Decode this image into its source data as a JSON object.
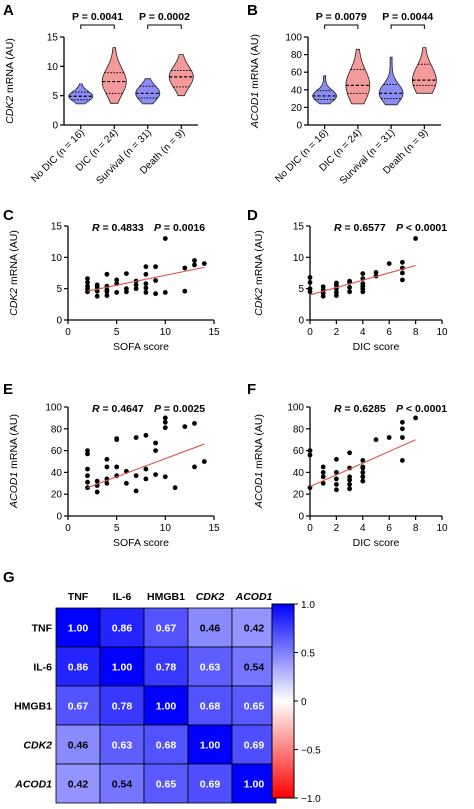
{
  "panels": {
    "A": "A",
    "B": "B",
    "C": "C",
    "D": "D",
    "E": "E",
    "F": "F",
    "G": "G"
  },
  "chart_data": [
    {
      "id": "A",
      "type": "violin",
      "ylabel_gene": "CDK2",
      "ylabel_rest": " mRNA (AU)",
      "ylim": [
        0,
        15
      ],
      "yticks": [
        0,
        5,
        10,
        15
      ],
      "categories": [
        "No DIC (n = 16)",
        "DIC (n = 24)",
        "Survival (n = 31)",
        "Death (n = 9)"
      ],
      "groups": [
        {
          "name": "No DIC (n = 16)",
          "color": "#8c8cf2",
          "min": 3.6,
          "max": 7.0,
          "q1": 4.3,
          "median": 4.9,
          "q3": 5.6
        },
        {
          "name": "DIC (n = 24)",
          "color": "#f59a9a",
          "min": 3.7,
          "max": 13.2,
          "q1": 5.4,
          "median": 7.4,
          "q3": 8.9
        },
        {
          "name": "Survival (n = 31)",
          "color": "#8c8cf2",
          "min": 3.6,
          "max": 7.9,
          "q1": 4.6,
          "median": 5.4,
          "q3": 6.6
        },
        {
          "name": "Death (n = 9)",
          "color": "#f59a9a",
          "min": 5.0,
          "max": 12.0,
          "q1": 6.5,
          "median": 8.2,
          "q3": 9.3
        }
      ],
      "comparisons": [
        {
          "between": [
            0,
            1
          ],
          "label": "P = 0.0041"
        },
        {
          "between": [
            2,
            3
          ],
          "label": "P = 0.0002"
        }
      ]
    },
    {
      "id": "B",
      "type": "violin",
      "ylabel_gene": "ACOD1",
      "ylabel_rest": " mRNA (AU)",
      "ylim": [
        0,
        100
      ],
      "yticks": [
        0,
        20,
        40,
        60,
        80,
        100
      ],
      "categories": [
        "No DIC (n = 16)",
        "DIC (n = 24)",
        "Survival (n = 31)",
        "Death (n = 9)"
      ],
      "groups": [
        {
          "name": "No DIC (n = 16)",
          "color": "#8c8cf2",
          "min": 24,
          "max": 56,
          "q1": 29,
          "median": 33,
          "q3": 39
        },
        {
          "name": "DIC (n = 24)",
          "color": "#f59a9a",
          "min": 24,
          "max": 86,
          "q1": 36,
          "median": 45,
          "q3": 63
        },
        {
          "name": "Survival (n = 31)",
          "color": "#8c8cf2",
          "min": 23,
          "max": 77,
          "q1": 30,
          "median": 36,
          "q3": 46
        },
        {
          "name": "Death (n = 9)",
          "color": "#f59a9a",
          "min": 36,
          "max": 88,
          "q1": 45,
          "median": 51,
          "q3": 69
        }
      ],
      "comparisons": [
        {
          "between": [
            0,
            1
          ],
          "label": "P = 0.0079"
        },
        {
          "between": [
            2,
            3
          ],
          "label": "P = 0.0044"
        }
      ]
    },
    {
      "id": "C",
      "type": "scatter",
      "xlabel": "SOFA score",
      "ylabel_gene": "CDK2",
      "ylabel_rest": " mRNA (AU)",
      "xlim": [
        0,
        15
      ],
      "ylim": [
        0,
        15
      ],
      "xticks": [
        0,
        5,
        10,
        15
      ],
      "yticks": [
        0,
        5,
        10,
        15
      ],
      "r_label": "R = 0.4833",
      "p_label": "P = 0.0016",
      "fit": {
        "x": [
          2,
          14
        ],
        "y": [
          4.6,
          8.4
        ]
      },
      "points": [
        [
          2,
          4.5
        ],
        [
          2,
          5.0
        ],
        [
          2,
          5.4
        ],
        [
          2,
          6.0
        ],
        [
          2,
          6.6
        ],
        [
          3,
          3.8
        ],
        [
          3,
          4.6
        ],
        [
          3,
          5.2
        ],
        [
          3,
          5.6
        ],
        [
          4,
          3.9
        ],
        [
          4,
          4.5
        ],
        [
          4,
          4.8
        ],
        [
          4,
          5.4
        ],
        [
          4,
          7.3
        ],
        [
          5,
          4.4
        ],
        [
          5,
          5.8
        ],
        [
          5,
          6.4
        ],
        [
          6,
          4.5
        ],
        [
          6,
          5.0
        ],
        [
          6,
          7.4
        ],
        [
          7,
          5.0
        ],
        [
          7,
          5.6
        ],
        [
          7,
          6.2
        ],
        [
          8,
          4.4
        ],
        [
          8,
          5.1
        ],
        [
          8,
          5.8
        ],
        [
          8,
          7.3
        ],
        [
          8,
          8.5
        ],
        [
          9,
          4.2
        ],
        [
          9,
          6.3
        ],
        [
          9,
          8.5
        ],
        [
          10,
          4.4
        ],
        [
          10,
          13.0
        ],
        [
          12,
          4.6
        ],
        [
          12,
          8.3
        ],
        [
          13,
          8.8
        ],
        [
          13,
          9.5
        ],
        [
          14,
          9.0
        ]
      ]
    },
    {
      "id": "D",
      "type": "scatter",
      "xlabel": "DIC score",
      "ylabel_gene": "CDK2",
      "ylabel_rest": " mRNA (AU)",
      "xlim": [
        0,
        10
      ],
      "ylim": [
        0,
        15
      ],
      "xticks": [
        0,
        2,
        4,
        6,
        8,
        10
      ],
      "yticks": [
        0,
        5,
        10,
        15
      ],
      "r_label": "R = 0.6577",
      "p_label": "P < 0.0001",
      "fit": {
        "x": [
          0,
          8
        ],
        "y": [
          4.0,
          8.7
        ]
      },
      "points": [
        [
          0,
          4.5
        ],
        [
          0,
          5.0
        ],
        [
          0,
          6.0
        ],
        [
          0,
          6.8
        ],
        [
          1,
          3.8
        ],
        [
          1,
          4.3
        ],
        [
          1,
          4.8
        ],
        [
          1,
          5.3
        ],
        [
          2,
          3.9
        ],
        [
          2,
          4.4
        ],
        [
          2,
          5.0
        ],
        [
          2,
          5.5
        ],
        [
          2,
          5.9
        ],
        [
          3,
          4.5
        ],
        [
          3,
          5.2
        ],
        [
          3,
          6.0
        ],
        [
          3,
          6.2
        ],
        [
          4,
          4.5
        ],
        [
          4,
          5.0
        ],
        [
          4,
          5.4
        ],
        [
          4,
          5.8
        ],
        [
          4,
          6.6
        ],
        [
          4,
          7.4
        ],
        [
          5,
          7.0
        ],
        [
          5,
          7.6
        ],
        [
          6,
          9.0
        ],
        [
          7,
          6.4
        ],
        [
          7,
          7.5
        ],
        [
          7,
          8.3
        ],
        [
          7,
          9.2
        ],
        [
          8,
          13.0
        ]
      ]
    },
    {
      "id": "E",
      "type": "scatter",
      "xlabel": "SOFA score",
      "ylabel_gene": "ACOD1",
      "ylabel_rest": " mRNA (AU)",
      "xlim": [
        0,
        15
      ],
      "ylim": [
        0,
        100
      ],
      "xticks": [
        0,
        5,
        10,
        15
      ],
      "yticks": [
        0,
        20,
        40,
        60,
        80,
        100
      ],
      "r_label": "R = 0.4647",
      "p_label": "P = 0.0025",
      "fit": {
        "x": [
          2,
          14
        ],
        "y": [
          26,
          66
        ]
      },
      "points": [
        [
          2,
          26
        ],
        [
          2,
          31
        ],
        [
          2,
          37
        ],
        [
          2,
          43
        ],
        [
          2,
          57
        ],
        [
          2,
          60
        ],
        [
          3,
          22
        ],
        [
          3,
          28
        ],
        [
          3,
          32
        ],
        [
          4,
          30
        ],
        [
          4,
          34
        ],
        [
          4,
          45
        ],
        [
          4,
          52
        ],
        [
          5,
          37
        ],
        [
          5,
          45
        ],
        [
          5,
          70
        ],
        [
          5,
          71
        ],
        [
          6,
          30
        ],
        [
          6,
          41
        ],
        [
          7,
          23
        ],
        [
          7,
          37
        ],
        [
          7,
          72
        ],
        [
          8,
          34
        ],
        [
          8,
          43
        ],
        [
          8,
          74
        ],
        [
          9,
          38
        ],
        [
          9,
          60
        ],
        [
          9,
          67
        ],
        [
          10,
          36
        ],
        [
          10,
          81
        ],
        [
          10,
          86
        ],
        [
          10,
          90
        ],
        [
          11,
          26
        ],
        [
          12,
          82
        ],
        [
          13,
          45
        ],
        [
          13,
          85
        ],
        [
          14,
          50
        ]
      ]
    },
    {
      "id": "F",
      "type": "scatter",
      "xlabel": "DIC score",
      "ylabel_gene": "ACOD1",
      "ylabel_rest": " mRNA (AU)",
      "xlim": [
        0,
        10
      ],
      "ylim": [
        0,
        100
      ],
      "xticks": [
        0,
        2,
        4,
        6,
        8,
        10
      ],
      "yticks": [
        0,
        20,
        40,
        60,
        80,
        100
      ],
      "r_label": "R = 0.6285",
      "p_label": "P < 0.0001",
      "fit": {
        "x": [
          0,
          8
        ],
        "y": [
          27,
          70
        ]
      },
      "points": [
        [
          0,
          26
        ],
        [
          0,
          56
        ],
        [
          0,
          60
        ],
        [
          1,
          30
        ],
        [
          1,
          36
        ],
        [
          1,
          40
        ],
        [
          1,
          45
        ],
        [
          2,
          24
        ],
        [
          2,
          29
        ],
        [
          2,
          34
        ],
        [
          2,
          40
        ],
        [
          2,
          52
        ],
        [
          3,
          25
        ],
        [
          3,
          29
        ],
        [
          3,
          33
        ],
        [
          3,
          36
        ],
        [
          3,
          44
        ],
        [
          3,
          58
        ],
        [
          4,
          32
        ],
        [
          4,
          36
        ],
        [
          4,
          40
        ],
        [
          4,
          44
        ],
        [
          4,
          45
        ],
        [
          4,
          51
        ],
        [
          5,
          70
        ],
        [
          6,
          72
        ],
        [
          7,
          51
        ],
        [
          7,
          72
        ],
        [
          7,
          80
        ],
        [
          7,
          86
        ],
        [
          8,
          90
        ]
      ]
    },
    {
      "id": "G",
      "type": "heatmap",
      "labels": [
        "TNF",
        "IL-6",
        "HMGB1",
        "CDK2",
        "ACOD1"
      ],
      "italic": [
        false,
        false,
        false,
        true,
        true
      ],
      "values": [
        [
          1.0,
          0.86,
          0.67,
          0.46,
          0.42
        ],
        [
          0.86,
          1.0,
          0.78,
          0.63,
          0.54
        ],
        [
          0.67,
          0.78,
          1.0,
          0.68,
          0.65
        ],
        [
          0.46,
          0.63,
          0.68,
          1.0,
          0.69
        ],
        [
          0.42,
          0.54,
          0.65,
          0.69,
          1.0
        ]
      ],
      "value_labels": [
        [
          "1.00",
          "0.86",
          "0.67",
          "0.46",
          "0.42"
        ],
        [
          "0.86",
          "1.00",
          "0.78",
          "0.63",
          "0.54"
        ],
        [
          "0.67",
          "0.78",
          "1.00",
          "0.68",
          "0.65"
        ],
        [
          "0.46",
          "0.63",
          "0.68",
          "1.00",
          "0.69"
        ],
        [
          "0.42",
          "0.54",
          "0.65",
          "0.69",
          "1.00"
        ]
      ],
      "colorbar": {
        "ticks": [
          "1.0",
          "0.5",
          "0",
          "−0.5",
          "−1.0"
        ],
        "tick_values": [
          1.0,
          0.5,
          0,
          -0.5,
          -1.0
        ],
        "range": [
          -1.0,
          1.0
        ],
        "max_color": "#0000ff",
        "mid_color": "#ffffff",
        "min_color": "#ff0000"
      }
    }
  ]
}
